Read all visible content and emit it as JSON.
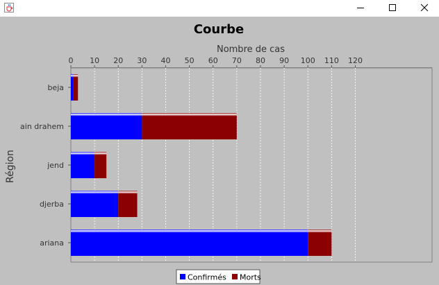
{
  "window": {
    "app_icon": "java-cup-icon",
    "controls": [
      "minimize-icon",
      "maximize-icon",
      "close-icon"
    ]
  },
  "colors": {
    "panel_bg": "#c0c0c0",
    "plot_bg": "#c0c0c0",
    "confirmes": "#0000ff",
    "morts": "#8b0000",
    "grid": "#ffffff"
  },
  "chart_data": {
    "type": "bar",
    "orientation": "horizontal",
    "stacked": true,
    "title": "Courbe",
    "xlabel": "Nombre de cas",
    "ylabel": "Région",
    "x_axis_position": "top",
    "xlim": [
      0,
      120
    ],
    "xticks": [
      0,
      10,
      20,
      30,
      40,
      50,
      60,
      70,
      80,
      90,
      100,
      110,
      120
    ],
    "grid": true,
    "legend_position": "bottom",
    "categories": [
      "beja",
      "ain drahem",
      "jend",
      "djerba",
      "ariana"
    ],
    "series": [
      {
        "name": "Confirmés",
        "color": "#0000ff",
        "values": [
          1,
          30,
          10,
          20,
          100
        ]
      },
      {
        "name": "Morts",
        "color": "#8b0000",
        "values": [
          2,
          40,
          5,
          8,
          10
        ]
      }
    ]
  }
}
